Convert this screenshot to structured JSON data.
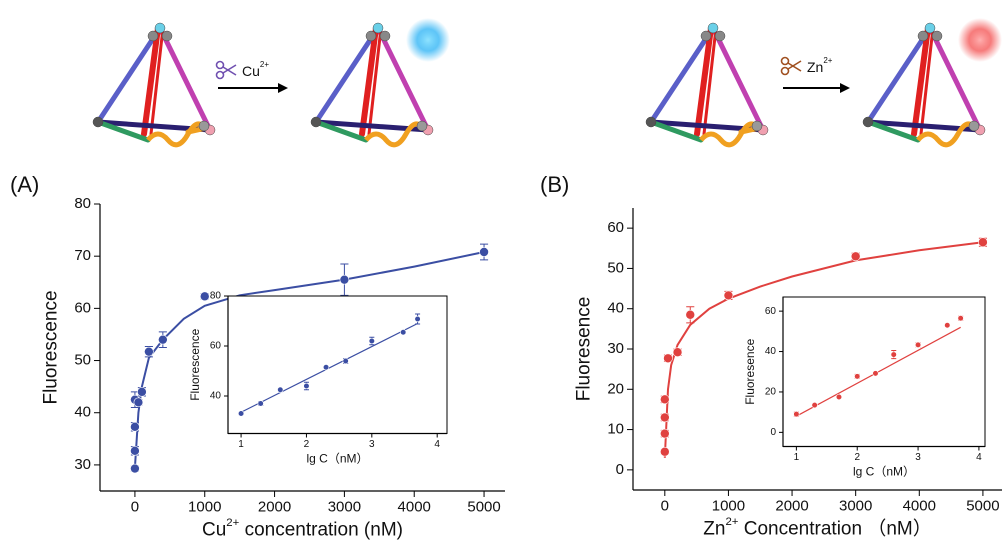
{
  "scheme": [
    {
      "ion": "Cu",
      "charge": "2+"
    },
    {
      "ion": "Zn",
      "charge": "2+"
    }
  ],
  "panels": [
    "(A)",
    "(B)"
  ],
  "chart_data": [
    {
      "type": "scatter",
      "color": "#3b4ea3",
      "x_label": [
        {
          "text": "Cu"
        },
        {
          "sup": "2+"
        },
        {
          "text": " concentration (nM)"
        }
      ],
      "y_label": "Fluorescence",
      "xlim": [
        -500,
        5300
      ],
      "xticks": [
        0,
        1000,
        2000,
        3000,
        4000,
        5000
      ],
      "ylim": [
        25,
        80
      ],
      "yticks": [
        30,
        40,
        50,
        60,
        70,
        80
      ],
      "x": [
        0,
        0,
        0,
        0,
        50,
        100,
        200,
        400,
        1000,
        3000,
        5000
      ],
      "values": [
        29.3,
        32.7,
        37.3,
        42.5,
        42,
        44,
        51.7,
        54,
        62.3,
        65.5,
        70.8
      ],
      "errors": [
        0.5,
        0.8,
        0.8,
        1.5,
        0.5,
        0.8,
        1,
        1.5,
        0.5,
        3,
        1.5
      ],
      "fit": {
        "x": [
          0,
          50,
          100,
          200,
          400,
          700,
          1000,
          1500,
          2000,
          3000,
          4000,
          5000
        ],
        "values": [
          29.5,
          40,
          45,
          50.5,
          54,
          58,
          60.5,
          62.5,
          63.5,
          65.5,
          68,
          70.8
        ]
      }
    },
    {
      "type": "scatter",
      "color": "#3b4ea3",
      "box": true,
      "x_label": [
        {
          "text": "lg C（nM）"
        }
      ],
      "y_label": "Fluorescence",
      "xlim": [
        0.8,
        4.15
      ],
      "xticks": [
        1,
        2,
        3,
        4
      ],
      "ylim": [
        25,
        80
      ],
      "yticks": [
        40,
        60,
        80
      ],
      "x": [
        1,
        1.3,
        1.6,
        2,
        2.3,
        2.6,
        3,
        3.48,
        3.7
      ],
      "values": [
        33,
        37,
        42.5,
        44,
        51.5,
        54,
        62,
        65.5,
        70.8
      ],
      "errors": [
        0.5,
        0.8,
        0.5,
        1.5,
        0.5,
        1,
        1.5,
        0.5,
        2
      ],
      "fit": {
        "x": [
          1,
          3.7
        ],
        "values": [
          33.5,
          69
        ]
      }
    },
    {
      "type": "scatter",
      "color": "#e0413f",
      "x_label": [
        {
          "text": "Zn"
        },
        {
          "sup": "2+"
        },
        {
          "text": " Concentration  （nM）"
        }
      ],
      "y_label": "Fluoresence",
      "xlim": [
        -500,
        5300
      ],
      "xticks": [
        0,
        1000,
        2000,
        3000,
        4000,
        5000
      ],
      "ylim": [
        -5,
        65
      ],
      "yticks": [
        0,
        10,
        20,
        30,
        40,
        50,
        60
      ],
      "x": [
        0,
        0,
        0,
        0,
        50,
        200,
        400,
        1000,
        3000,
        5000
      ],
      "values": [
        4.5,
        9,
        13,
        17.5,
        27.7,
        29.2,
        38.5,
        43.3,
        53,
        56.5
      ],
      "errors": [
        0.5,
        0.8,
        0.8,
        0.8,
        0.8,
        0.8,
        2,
        1,
        0.8,
        1
      ],
      "fit": {
        "x": [
          0,
          50,
          100,
          200,
          400,
          700,
          1000,
          1500,
          2000,
          3000,
          4000,
          5000
        ],
        "values": [
          3,
          20,
          26,
          31,
          36,
          40,
          42.5,
          45.5,
          48,
          52,
          54.5,
          56.5
        ]
      }
    },
    {
      "type": "scatter",
      "color": "#e0413f",
      "box": true,
      "x_label": [
        {
          "text": "lg C（nM）"
        }
      ],
      "y_label": "Fluoresence",
      "xlim": [
        0.78,
        4.1
      ],
      "xticks": [
        1,
        2,
        3,
        4
      ],
      "ylim": [
        -7,
        67
      ],
      "yticks": [
        0,
        20,
        40,
        60
      ],
      "x": [
        1,
        1.3,
        1.7,
        2,
        2.3,
        2.6,
        3,
        3.48,
        3.7
      ],
      "values": [
        9,
        13.5,
        17.5,
        27.7,
        29.2,
        38.5,
        43.3,
        53,
        56.5
      ],
      "errors": [
        1,
        0.5,
        0.5,
        1,
        0.5,
        2,
        1,
        0.5,
        1
      ],
      "fit": {
        "x": [
          1,
          3.7
        ],
        "values": [
          8,
          52
        ]
      }
    }
  ]
}
